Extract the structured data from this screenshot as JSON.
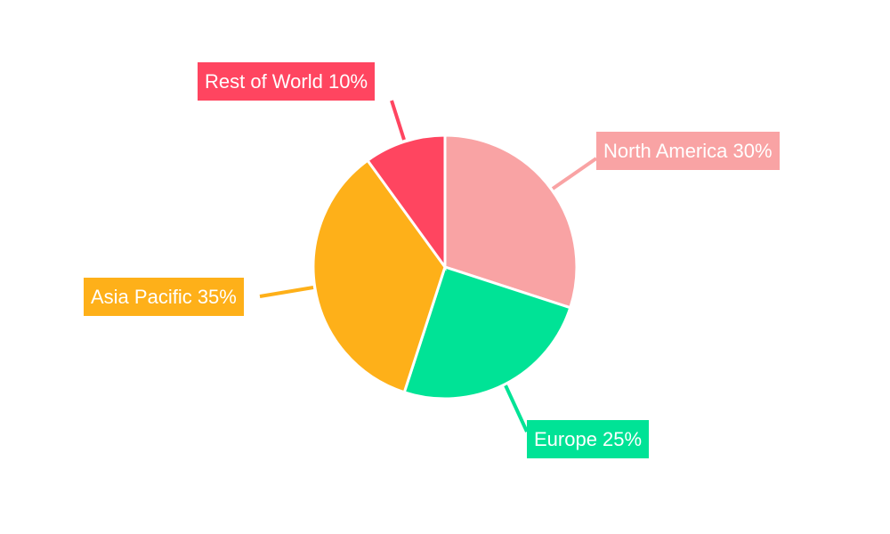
{
  "chart_data": {
    "type": "pie",
    "start_angle": "top, clockwise",
    "categories": [
      "North America",
      "Europe",
      "Asia Pacific",
      "Rest of World"
    ],
    "values": [
      30,
      25,
      35,
      10
    ],
    "unit": "%",
    "colors": [
      "#f9a3a4",
      "#00e396",
      "#feb019",
      "#ff4560"
    ],
    "data_labels": [
      "North America 30%",
      "Europe 25%",
      "Asia Pacific 35%",
      "Rest of World 10%"
    ],
    "legend": "none"
  }
}
